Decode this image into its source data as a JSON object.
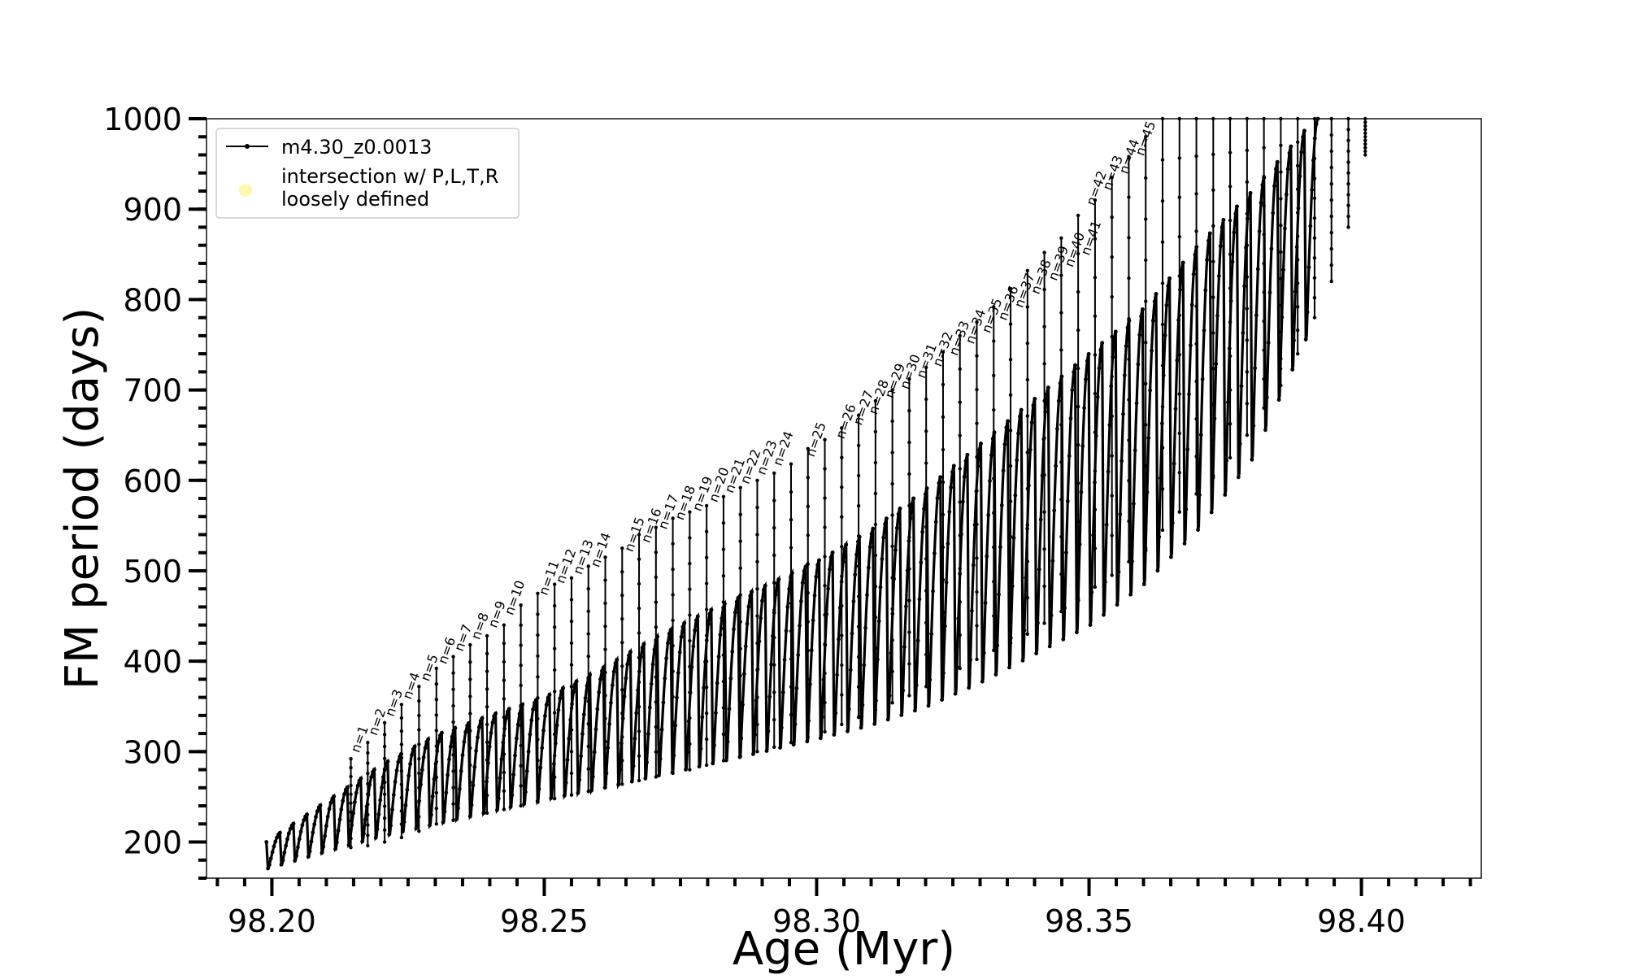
{
  "chart_data": {
    "type": "line",
    "title": "",
    "xlabel": "Age (Myr)",
    "ylabel": "FM period (days)",
    "xlim": [
      98.188,
      98.422
    ],
    "ylim": [
      160,
      1000
    ],
    "grid": false,
    "legend_position": "top-left",
    "x_ticks": [
      98.2,
      98.25,
      98.3,
      98.35,
      98.4
    ],
    "x_tick_labels": [
      "98.20",
      "98.25",
      "98.30",
      "98.35",
      "98.40"
    ],
    "y_ticks": [
      200,
      300,
      400,
      500,
      600,
      700,
      800,
      900,
      1000
    ],
    "y_tick_labels": [
      "200",
      "300",
      "400",
      "500",
      "600",
      "700",
      "800",
      "900",
      "1000"
    ],
    "series": [
      {
        "name": "m4.30_z0.0013",
        "style": "line-with-dot-markers",
        "color": "#000000",
        "description_points": {
          "envelope_x": [
            98.199,
            98.21,
            98.22,
            98.23,
            98.24,
            98.25,
            98.26,
            98.27,
            98.28,
            98.29,
            98.3,
            98.31,
            98.32,
            98.33,
            98.34,
            98.35,
            98.36,
            98.37,
            98.38,
            98.39,
            98.392
          ],
          "envelope_upper_y": [
            200,
            245,
            285,
            318,
            340,
            360,
            390,
            425,
            455,
            482,
            510,
            545,
            590,
            640,
            690,
            740,
            790,
            860,
            920,
            990,
            1000
          ],
          "envelope_lower_y": [
            168,
            185,
            200,
            212,
            225,
            238,
            248,
            260,
            272,
            285,
            298,
            312,
            330,
            355,
            385,
            415,
            460,
            520,
            600,
            740,
            760
          ]
        }
      },
      {
        "name": "intersection w/ P,L,T,R loosely defined",
        "style": "marker-only",
        "color": "#fff8b0",
        "values": []
      }
    ],
    "spikes": {
      "x": [
        98.2145,
        98.2176,
        98.2207,
        98.2238,
        98.227,
        98.2302,
        98.2333,
        98.2364,
        98.2395,
        98.2426,
        98.2457,
        98.2488,
        98.2519,
        98.255,
        98.2581,
        98.2612,
        98.2643,
        98.2674,
        98.2705,
        98.2736,
        98.2767,
        98.2798,
        98.2829,
        98.286,
        98.2891,
        98.2922,
        98.2953,
        98.2984,
        98.3015,
        98.3046,
        98.3077,
        98.3108,
        98.3139,
        98.317,
        98.3201,
        98.3232,
        98.3263,
        98.3294,
        98.3325,
        98.3356,
        98.3387,
        98.3418,
        98.3449,
        98.348,
        98.3511,
        98.3542,
        98.3573,
        98.3604,
        98.3635,
        98.3666,
        98.3697,
        98.3728,
        98.3759,
        98.379,
        98.3821,
        98.3852,
        98.3883,
        98.3914,
        98.3945,
        98.3976,
        98.4007
      ],
      "y_top": [
        292,
        310,
        332,
        352,
        372,
        392,
        405,
        418,
        428,
        440,
        462,
        475,
        485,
        492,
        505,
        515,
        525,
        540,
        548,
        558,
        565,
        572,
        582,
        592,
        600,
        608,
        618,
        635,
        645,
        658,
        672,
        688,
        700,
        712,
        725,
        742,
        760,
        775,
        792,
        812,
        832,
        852,
        868,
        893,
        910,
        935,
        958,
        980,
        1000,
        1000,
        1000,
        1000,
        1000,
        1000,
        1000,
        1000,
        1000,
        1000,
        1000,
        1000,
        1000
      ],
      "y_bottom": [
        194,
        196,
        200,
        205,
        212,
        220,
        224,
        228,
        232,
        236,
        240,
        244,
        248,
        252,
        256,
        260,
        264,
        268,
        272,
        276,
        280,
        285,
        290,
        295,
        300,
        305,
        310,
        316,
        322,
        330,
        338,
        346,
        354,
        362,
        372,
        382,
        392,
        402,
        412,
        420,
        430,
        442,
        455,
        470,
        482,
        495,
        510,
        525,
        545,
        565,
        585,
        605,
        625,
        650,
        680,
        705,
        740,
        780,
        820,
        880,
        960
      ],
      "labels": [
        "n=1",
        "n=2",
        "n=3",
        "n=4",
        "n=5",
        "n=6",
        "n=7",
        "n=8",
        "n=9",
        "n=10",
        "n=11",
        "n=12",
        "n=13",
        "n=14",
        "n=15",
        "n=16",
        "n=17",
        "n=18",
        "n=19",
        "n=20",
        "n=21",
        "n=22",
        "n=23",
        "n=24",
        "n=25",
        "n=26",
        "n=27",
        "n=28",
        "n=29",
        "n=30",
        "n=31",
        "n=32",
        "n=33",
        "n=34",
        "n=35",
        "n=36",
        "n=37",
        "n=38",
        "n=39",
        "n=40",
        "n=41",
        "n=42",
        "n=43",
        "n=44",
        "n=45"
      ],
      "label_x": [
        98.216,
        98.2192,
        98.2223,
        98.2255,
        98.2288,
        98.232,
        98.235,
        98.2381,
        98.2412,
        98.2442,
        98.2505,
        98.2536,
        98.2568,
        98.26,
        98.2662,
        98.2693,
        98.2724,
        98.2755,
        98.2787,
        98.2817,
        98.2846,
        98.2875,
        98.2905,
        98.2935,
        98.2995,
        98.305,
        98.3082,
        98.311,
        98.314,
        98.3168,
        98.3198,
        98.3228,
        98.3258,
        98.3288,
        98.3318,
        98.3348,
        98.3378,
        98.3408,
        98.344,
        98.347,
        98.35,
        98.351,
        98.354,
        98.357,
        98.36
      ],
      "label_y": [
        298,
        317,
        338,
        357,
        377,
        396,
        410,
        423,
        436,
        450,
        472,
        485,
        495,
        503,
        520,
        530,
        545,
        555,
        565,
        575,
        585,
        595,
        605,
        615,
        625,
        645,
        660,
        672,
        690,
        700,
        712,
        725,
        737,
        750,
        762,
        776,
        790,
        805,
        820,
        835,
        848,
        903,
        920,
        938,
        958
      ]
    }
  },
  "legend": {
    "entries": [
      "m4.30_z0.0013",
      "intersection w/ P,L,T,R",
      "loosely defined"
    ]
  }
}
